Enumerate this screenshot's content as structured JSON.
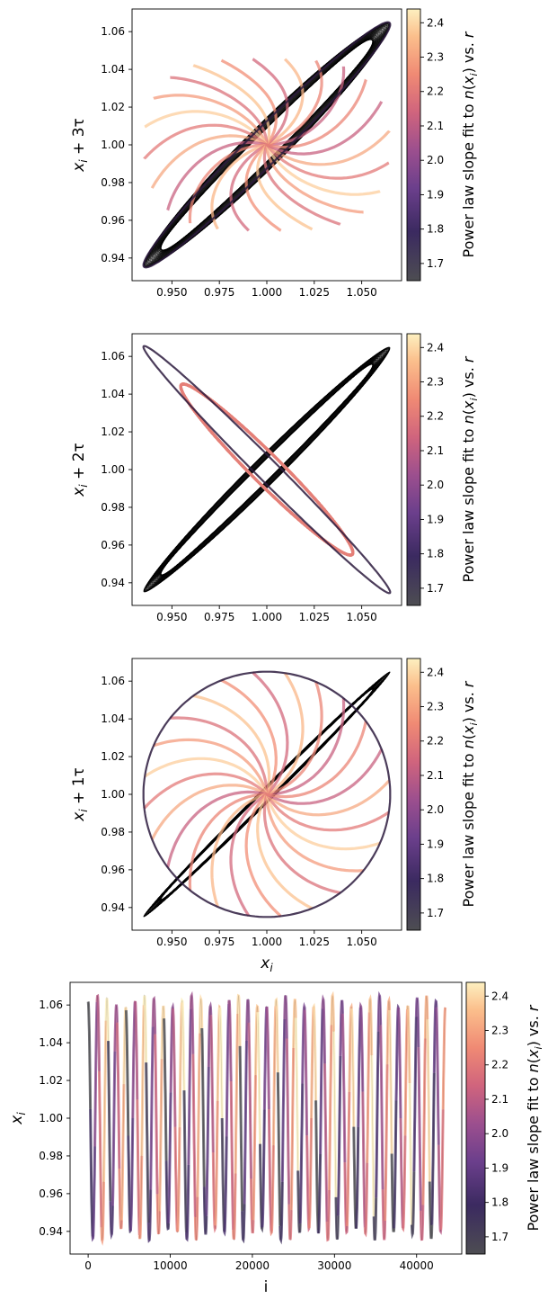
{
  "chart_data": [
    {
      "type": "line",
      "xlabel": "",
      "ylabel": "x_i + 3τ",
      "ylabel_parts": {
        "base": "x",
        "sub": "i",
        "rest": " + 3τ"
      },
      "xlim": [
        0.929,
        1.071
      ],
      "ylim": [
        0.928,
        1.072
      ],
      "xticks": [
        0.95,
        0.975,
        1.0,
        1.025,
        1.05
      ],
      "xtick_labels": [
        "0.950",
        "0.975",
        "1.000",
        "1.025",
        "1.050"
      ],
      "yticks": [
        0.94,
        0.96,
        0.98,
        1.0,
        1.02,
        1.04,
        1.06
      ],
      "ytick_labels": [
        "0.94",
        "0.96",
        "0.98",
        "1.00",
        "1.02",
        "1.04",
        "1.06"
      ],
      "curve": {
        "form": "x=1+A·cos(t), y=1+A·cos(t+3φ)",
        "amplitude": 0.065,
        "lobes": 24
      },
      "colorbar": {
        "label": "Power law slope fit to n(x_i) vs. r",
        "colormap": "magma",
        "range": [
          1.65,
          2.44
        ],
        "ticks": [
          1.7,
          1.8,
          1.9,
          2.0,
          2.1,
          2.2,
          2.3,
          2.4
        ],
        "tick_labels": [
          "1.7",
          "1.8",
          "1.9",
          "2.0",
          "2.1",
          "2.2",
          "2.3",
          "2.4"
        ]
      }
    },
    {
      "type": "line",
      "xlabel": "",
      "ylabel": "x_i + 2τ",
      "ylabel_parts": {
        "base": "x",
        "sub": "i",
        "rest": " + 2τ"
      },
      "xlim": [
        0.929,
        1.071
      ],
      "ylim": [
        0.928,
        1.072
      ],
      "xticks": [
        0.95,
        0.975,
        1.0,
        1.025,
        1.05
      ],
      "xtick_labels": [
        "0.950",
        "0.975",
        "1.000",
        "1.025",
        "1.050"
      ],
      "yticks": [
        0.94,
        0.96,
        0.98,
        1.0,
        1.02,
        1.04,
        1.06
      ],
      "ytick_labels": [
        "0.94",
        "0.96",
        "0.98",
        "1.00",
        "1.02",
        "1.04",
        "1.06"
      ],
      "curve": {
        "form": "x=1+A·cos(t), y=1+A·cos(t+2φ)",
        "amplitude": 0.065,
        "lobes": 24
      },
      "colorbar": {
        "label": "Power law slope fit to n(x_i) vs. r",
        "colormap": "magma",
        "range": [
          1.65,
          2.44
        ],
        "ticks": [
          1.7,
          1.8,
          1.9,
          2.0,
          2.1,
          2.2,
          2.3,
          2.4
        ],
        "tick_labels": [
          "1.7",
          "1.8",
          "1.9",
          "2.0",
          "2.1",
          "2.2",
          "2.3",
          "2.4"
        ]
      }
    },
    {
      "type": "line",
      "xlabel": "x_i",
      "xlabel_parts": {
        "base": "x",
        "sub": "i",
        "rest": ""
      },
      "ylabel": "x_i + 1τ",
      "ylabel_parts": {
        "base": "x",
        "sub": "i",
        "rest": " + 1τ"
      },
      "xlim": [
        0.929,
        1.071
      ],
      "ylim": [
        0.928,
        1.072
      ],
      "xticks": [
        0.95,
        0.975,
        1.0,
        1.025,
        1.05
      ],
      "xtick_labels": [
        "0.950",
        "0.975",
        "1.000",
        "1.025",
        "1.050"
      ],
      "yticks": [
        0.94,
        0.96,
        0.98,
        1.0,
        1.02,
        1.04,
        1.06
      ],
      "ytick_labels": [
        "0.94",
        "0.96",
        "0.98",
        "1.00",
        "1.02",
        "1.04",
        "1.06"
      ],
      "curve": {
        "form": "x=1+A·cos(t), y=1+A·cos(t+φ)",
        "amplitude": 0.065,
        "lobes": 24
      },
      "colorbar": {
        "label": "Power law slope fit to n(x_i) vs. r",
        "colormap": "magma",
        "range": [
          1.65,
          2.44
        ],
        "ticks": [
          1.7,
          1.8,
          1.9,
          2.0,
          2.1,
          2.2,
          2.3,
          2.4
        ],
        "tick_labels": [
          "1.7",
          "1.8",
          "1.9",
          "2.0",
          "2.1",
          "2.2",
          "2.3",
          "2.4"
        ]
      }
    },
    {
      "type": "line",
      "xlabel": "i",
      "ylabel": "x_i",
      "ylabel_parts": {
        "base": "x",
        "sub": "i",
        "rest": ""
      },
      "xlim": [
        -2200,
        45500
      ],
      "ylim": [
        0.928,
        1.072
      ],
      "xticks": [
        0,
        10000,
        20000,
        30000,
        40000
      ],
      "xtick_labels": [
        "0",
        "10000",
        "20000",
        "30000",
        "40000"
      ],
      "yticks": [
        0.94,
        0.96,
        0.98,
        1.0,
        1.02,
        1.04,
        1.06
      ],
      "ytick_labels": [
        "0.94",
        "0.96",
        "0.98",
        "1.00",
        "1.02",
        "1.04",
        "1.06"
      ],
      "curve": {
        "form": "x_i = 1 + A·cos(2π·i/P)",
        "amplitude": 0.065,
        "i_range": [
          0,
          43500
        ],
        "oscillations": 38
      },
      "colorbar": {
        "label": "Power law slope fit to n(x_i) vs. r",
        "colormap": "magma",
        "range": [
          1.65,
          2.44
        ],
        "ticks": [
          1.7,
          1.8,
          1.9,
          2.0,
          2.1,
          2.2,
          2.3,
          2.4
        ],
        "tick_labels": [
          "1.7",
          "1.8",
          "1.9",
          "2.0",
          "2.1",
          "2.2",
          "2.3",
          "2.4"
        ]
      }
    }
  ]
}
